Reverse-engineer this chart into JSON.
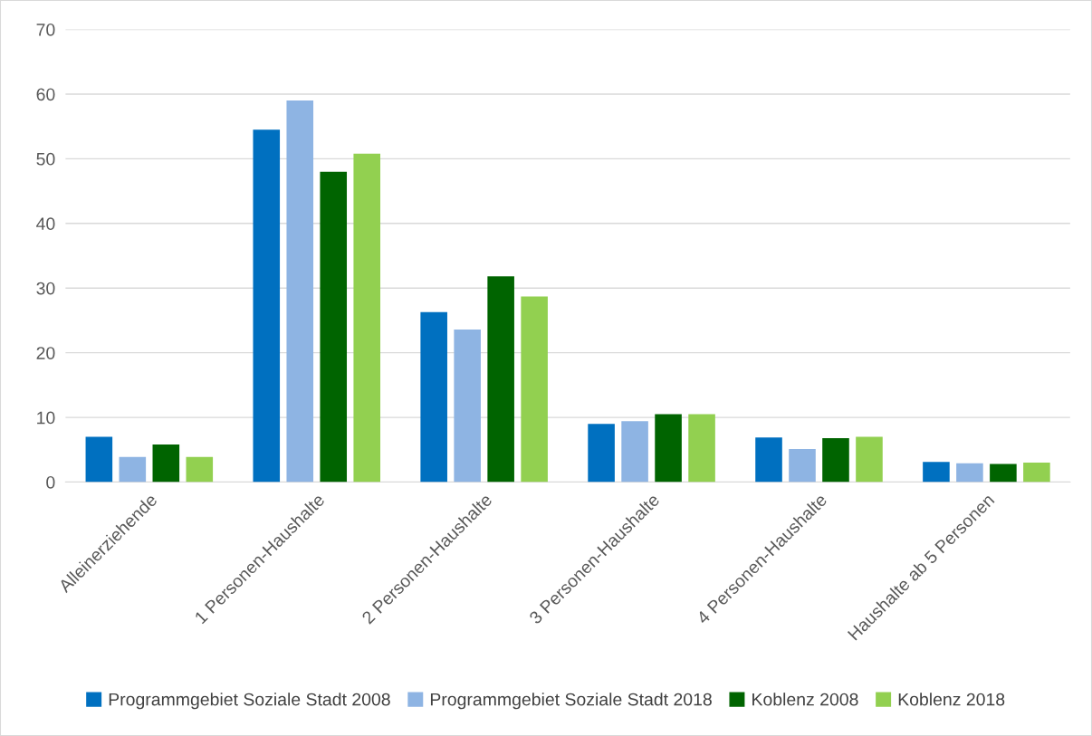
{
  "chart_data": {
    "type": "bar",
    "categories": [
      "Alleinerziehende",
      "1 Personen-Haushalte",
      "2 Personen-Haushalte",
      "3 Personen-Haushalte",
      "4 Personen-Haushalte",
      "Haushalte ab 5 Personen"
    ],
    "series": [
      {
        "name": "Programmgebiet Soziale Stadt 2008",
        "color": "#0070c0",
        "values": [
          7.0,
          54.5,
          26.3,
          9.0,
          6.9,
          3.1
        ]
      },
      {
        "name": "Programmgebiet Soziale Stadt 2018",
        "color": "#8eb4e3",
        "values": [
          3.9,
          59.0,
          23.6,
          9.4,
          5.1,
          2.9
        ]
      },
      {
        "name": "Koblenz 2008",
        "color": "#006400",
        "values": [
          5.8,
          48.0,
          31.8,
          10.5,
          6.8,
          2.8
        ]
      },
      {
        "name": "Koblenz 2018",
        "color": "#92d050",
        "values": [
          3.9,
          50.8,
          28.7,
          10.5,
          7.0,
          3.0
        ]
      }
    ],
    "ylim": [
      0,
      70
    ],
    "yticks": [
      0,
      10,
      20,
      30,
      40,
      50,
      60,
      70
    ],
    "grid": "y",
    "legend": "bottom"
  }
}
